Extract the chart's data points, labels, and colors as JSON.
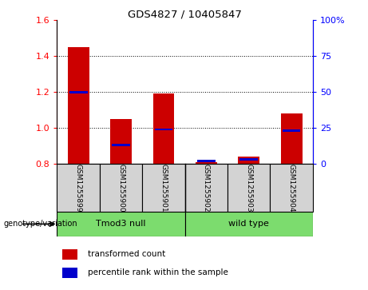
{
  "title": "GDS4827 / 10405847",
  "samples": [
    "GSM1255899",
    "GSM1255900",
    "GSM1255901",
    "GSM1255902",
    "GSM1255903",
    "GSM1255904"
  ],
  "red_values": [
    1.45,
    1.05,
    1.19,
    0.81,
    0.84,
    1.08
  ],
  "blue_values": [
    50,
    13,
    24,
    2,
    3,
    23
  ],
  "ylim_left": [
    0.8,
    1.6
  ],
  "ylim_right": [
    0,
    100
  ],
  "yticks_left": [
    0.8,
    1.0,
    1.2,
    1.4,
    1.6
  ],
  "yticks_right": [
    0,
    25,
    50,
    75,
    100
  ],
  "ytick_labels_right": [
    "0",
    "25",
    "50",
    "75",
    "100%"
  ],
  "group1_label": "Tmod3 null",
  "group2_label": "wild type",
  "group_label": "genotype/variation",
  "legend_red": "transformed count",
  "legend_blue": "percentile rank within the sample",
  "bar_color_red": "#cc0000",
  "bar_color_blue": "#0000cc",
  "bg_color": "#d3d3d3",
  "green_color": "#7cdc6e",
  "plot_bg": "#ffffff",
  "bar_width": 0.5,
  "baseline": 0.8
}
